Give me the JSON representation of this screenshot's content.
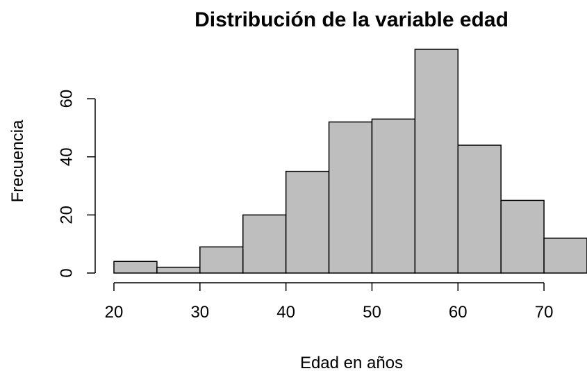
{
  "chart_data": {
    "type": "bar",
    "subtype": "histogram",
    "title": "Distribución de la variable edad",
    "xlabel": "Edad en años",
    "ylabel": "Frecuencia",
    "bin_edges": [
      20,
      25,
      30,
      35,
      40,
      45,
      50,
      55,
      60,
      65,
      70,
      75
    ],
    "values": [
      4,
      2,
      9,
      20,
      35,
      52,
      53,
      77,
      44,
      25,
      12
    ],
    "x_ticks": [
      20,
      30,
      40,
      50,
      60,
      70
    ],
    "y_ticks": [
      0,
      20,
      40,
      60
    ],
    "xlim": [
      20,
      75
    ],
    "ylim": [
      0,
      77
    ],
    "bar_color": "#bebebe",
    "grid": false,
    "legend": "none"
  }
}
